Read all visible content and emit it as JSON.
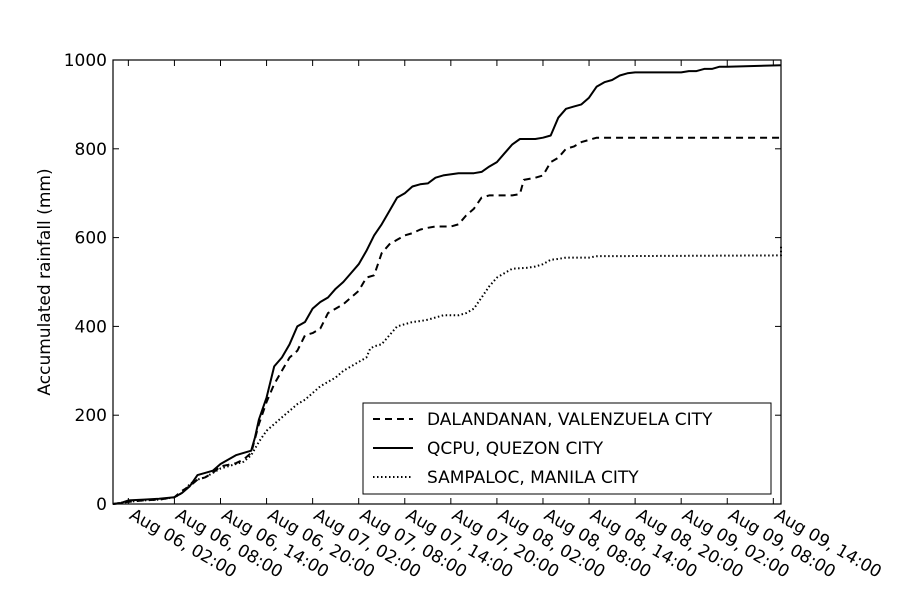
{
  "chart_data": {
    "type": "line",
    "title": "",
    "xlabel": "",
    "ylabel": "Accumulated rainfall (mm)",
    "x_unit": "hours since Aug 06, 00:00",
    "xlim": [
      0,
      87
    ],
    "ylim": [
      0,
      1000
    ],
    "yticks": [
      0,
      200,
      400,
      600,
      800,
      1000
    ],
    "xticks": [
      {
        "value": 2,
        "label": "Aug 06, 02:00"
      },
      {
        "value": 8,
        "label": "Aug 06, 08:00"
      },
      {
        "value": 14,
        "label": "Aug 06, 14:00"
      },
      {
        "value": 20,
        "label": "Aug 06, 20:00"
      },
      {
        "value": 26,
        "label": "Aug 07, 02:00"
      },
      {
        "value": 32,
        "label": "Aug 07, 08:00"
      },
      {
        "value": 38,
        "label": "Aug 07, 14:00"
      },
      {
        "value": 44,
        "label": "Aug 07, 20:00"
      },
      {
        "value": 50,
        "label": "Aug 08, 02:00"
      },
      {
        "value": 56,
        "label": "Aug 08, 08:00"
      },
      {
        "value": 62,
        "label": "Aug 08, 14:00"
      },
      {
        "value": 68,
        "label": "Aug 08, 20:00"
      },
      {
        "value": 74,
        "label": "Aug 09, 02:00"
      },
      {
        "value": 80,
        "label": "Aug 09, 08:00"
      },
      {
        "value": 86,
        "label": "Aug 09, 14:00"
      }
    ],
    "grid": false,
    "legend_position": "bottom-right",
    "series": [
      {
        "name": "DALANDANAN, VALENZUELA CITY",
        "style": "dashed",
        "points": [
          [
            0,
            0
          ],
          [
            2,
            5
          ],
          [
            4,
            8
          ],
          [
            6,
            10
          ],
          [
            8,
            15
          ],
          [
            9,
            30
          ],
          [
            10,
            40
          ],
          [
            11,
            55
          ],
          [
            12,
            60
          ],
          [
            13,
            70
          ],
          [
            14,
            85
          ],
          [
            15,
            88
          ],
          [
            16,
            92
          ],
          [
            17,
            100
          ],
          [
            18,
            115
          ],
          [
            19,
            180
          ],
          [
            20,
            230
          ],
          [
            21,
            270
          ],
          [
            22,
            300
          ],
          [
            23,
            330
          ],
          [
            24,
            345
          ],
          [
            25,
            380
          ],
          [
            26,
            385
          ],
          [
            27,
            395
          ],
          [
            28,
            430
          ],
          [
            29,
            440
          ],
          [
            30,
            450
          ],
          [
            31,
            465
          ],
          [
            32,
            480
          ],
          [
            33,
            510
          ],
          [
            34,
            515
          ],
          [
            35,
            565
          ],
          [
            36,
            585
          ],
          [
            37,
            595
          ],
          [
            38,
            605
          ],
          [
            39,
            610
          ],
          [
            40,
            618
          ],
          [
            41,
            622
          ],
          [
            42,
            625
          ],
          [
            44,
            625
          ],
          [
            45,
            630
          ],
          [
            46,
            650
          ],
          [
            47,
            665
          ],
          [
            48,
            690
          ],
          [
            49,
            695
          ],
          [
            52,
            695
          ],
          [
            53,
            698
          ],
          [
            53.5,
            730
          ],
          [
            55,
            735
          ],
          [
            56,
            740
          ],
          [
            57,
            770
          ],
          [
            58,
            780
          ],
          [
            59,
            800
          ],
          [
            60,
            805
          ],
          [
            61,
            815
          ],
          [
            62,
            820
          ],
          [
            63,
            825
          ],
          [
            87,
            825
          ]
        ]
      },
      {
        "name": "QCPU, QUEZON CITY",
        "style": "solid",
        "points": [
          [
            0,
            0
          ],
          [
            1,
            2
          ],
          [
            2,
            8
          ],
          [
            4,
            10
          ],
          [
            6,
            12
          ],
          [
            8,
            15
          ],
          [
            9,
            25
          ],
          [
            10,
            40
          ],
          [
            11,
            65
          ],
          [
            12,
            70
          ],
          [
            13,
            75
          ],
          [
            14,
            90
          ],
          [
            15,
            100
          ],
          [
            16,
            110
          ],
          [
            17,
            115
          ],
          [
            18,
            120
          ],
          [
            18.5,
            150
          ],
          [
            19,
            190
          ],
          [
            20,
            240
          ],
          [
            21,
            310
          ],
          [
            22,
            330
          ],
          [
            23,
            360
          ],
          [
            24,
            400
          ],
          [
            25,
            410
          ],
          [
            26,
            440
          ],
          [
            27,
            455
          ],
          [
            28,
            465
          ],
          [
            29,
            485
          ],
          [
            30,
            500
          ],
          [
            31,
            520
          ],
          [
            32,
            540
          ],
          [
            33,
            570
          ],
          [
            34,
            605
          ],
          [
            35,
            630
          ],
          [
            36,
            660
          ],
          [
            37,
            690
          ],
          [
            38,
            700
          ],
          [
            39,
            715
          ],
          [
            40,
            720
          ],
          [
            41,
            722
          ],
          [
            42,
            735
          ],
          [
            43,
            740
          ],
          [
            45,
            745
          ],
          [
            47,
            745
          ],
          [
            48,
            748
          ],
          [
            49,
            760
          ],
          [
            50,
            770
          ],
          [
            51,
            790
          ],
          [
            52,
            810
          ],
          [
            53,
            822
          ],
          [
            55,
            822
          ],
          [
            56,
            825
          ],
          [
            57,
            830
          ],
          [
            58,
            870
          ],
          [
            59,
            890
          ],
          [
            60,
            895
          ],
          [
            61,
            900
          ],
          [
            62,
            915
          ],
          [
            63,
            940
          ],
          [
            64,
            950
          ],
          [
            65,
            955
          ],
          [
            66,
            965
          ],
          [
            67,
            970
          ],
          [
            68,
            972
          ],
          [
            74,
            972
          ],
          [
            75,
            975
          ],
          [
            76,
            975
          ],
          [
            77,
            980
          ],
          [
            78,
            980
          ],
          [
            79,
            985
          ],
          [
            80,
            985
          ],
          [
            87,
            988
          ]
        ]
      },
      {
        "name": "SAMPALOC, MANILA CITY",
        "style": "dotted",
        "points": [
          [
            0,
            0
          ],
          [
            2,
            5
          ],
          [
            4,
            8
          ],
          [
            6,
            10
          ],
          [
            8,
            15
          ],
          [
            9,
            25
          ],
          [
            10,
            45
          ],
          [
            11,
            55
          ],
          [
            12,
            60
          ],
          [
            13,
            70
          ],
          [
            14,
            80
          ],
          [
            15,
            85
          ],
          [
            16,
            90
          ],
          [
            17,
            95
          ],
          [
            18,
            110
          ],
          [
            19,
            140
          ],
          [
            20,
            165
          ],
          [
            21,
            180
          ],
          [
            22,
            195
          ],
          [
            23,
            210
          ],
          [
            24,
            225
          ],
          [
            25,
            235
          ],
          [
            26,
            250
          ],
          [
            27,
            265
          ],
          [
            28,
            275
          ],
          [
            29,
            285
          ],
          [
            30,
            300
          ],
          [
            31,
            310
          ],
          [
            32,
            320
          ],
          [
            33,
            330
          ],
          [
            33.5,
            350
          ],
          [
            34,
            355
          ],
          [
            35,
            360
          ],
          [
            36,
            380
          ],
          [
            37,
            400
          ],
          [
            38,
            405
          ],
          [
            39,
            410
          ],
          [
            40,
            412
          ],
          [
            41,
            415
          ],
          [
            42,
            420
          ],
          [
            43,
            425
          ],
          [
            45,
            425
          ],
          [
            46,
            430
          ],
          [
            47,
            440
          ],
          [
            48,
            465
          ],
          [
            49,
            490
          ],
          [
            50,
            510
          ],
          [
            51,
            520
          ],
          [
            52,
            530
          ],
          [
            54,
            532
          ],
          [
            55,
            535
          ],
          [
            56,
            540
          ],
          [
            57,
            550
          ],
          [
            58,
            552
          ],
          [
            59,
            555
          ],
          [
            60,
            555
          ],
          [
            61,
            555
          ],
          [
            62,
            555
          ],
          [
            63,
            558
          ],
          [
            87,
            560
          ],
          [
            88,
            580
          ]
        ]
      }
    ]
  }
}
